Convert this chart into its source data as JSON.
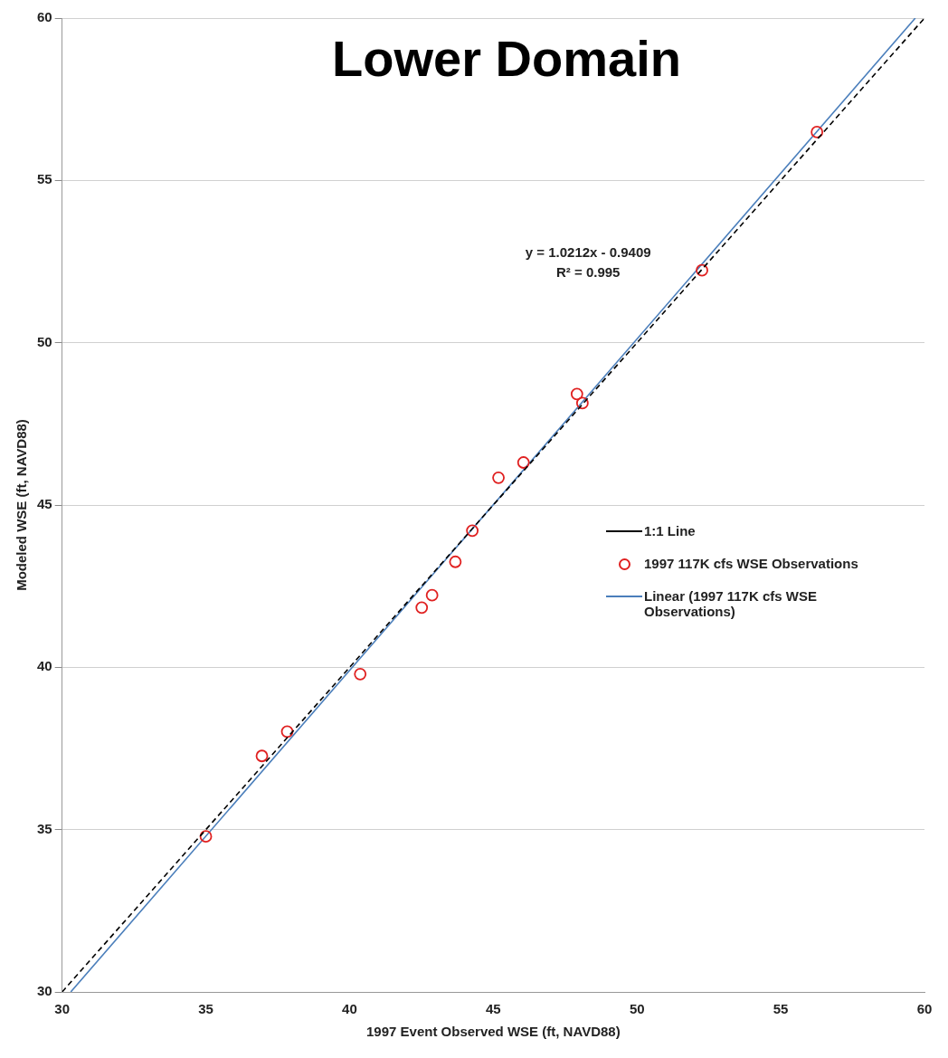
{
  "chart_data": {
    "type": "scatter",
    "title": "Lower Domain",
    "xlabel": "1997 Event Observed WSE (ft, NAVD88)",
    "ylabel": "Modeled WSE (ft, NAVD88)",
    "xlim": [
      30,
      60
    ],
    "ylim": [
      30,
      60
    ],
    "xticks": [
      30,
      35,
      40,
      45,
      50,
      55,
      60
    ],
    "yticks": [
      30,
      35,
      40,
      45,
      50,
      55,
      60
    ],
    "grid": "y",
    "legend": "right",
    "annotations": [
      "y = 1.0212x - 0.9409",
      "R² = 0.995"
    ],
    "series": [
      {
        "name": "1:1 Line",
        "type": "line",
        "color": "#000000",
        "line_style": "dashed",
        "marker": "none",
        "x": [
          30,
          60
        ],
        "values": [
          30,
          60
        ]
      },
      {
        "name": "1997 117K cfs WSE Observations",
        "type": "scatter",
        "color": "#e02020",
        "marker": "circle",
        "x": [
          35.0,
          36.95,
          37.83,
          40.37,
          42.51,
          42.87,
          43.68,
          44.27,
          45.18,
          46.05,
          47.91,
          48.1,
          52.26,
          56.26
        ],
        "values": [
          34.79,
          37.27,
          38.02,
          39.79,
          41.84,
          42.22,
          43.25,
          44.21,
          45.84,
          46.31,
          48.42,
          48.14,
          52.23,
          56.49
        ]
      },
      {
        "name": "Linear (1997 117K cfs WSE Observations)",
        "type": "line",
        "color": "#4a7ebb",
        "line_style": "solid",
        "marker": "none",
        "x": [
          30.3,
          59.68
        ],
        "values": [
          30.0,
          60.0
        ]
      }
    ]
  }
}
